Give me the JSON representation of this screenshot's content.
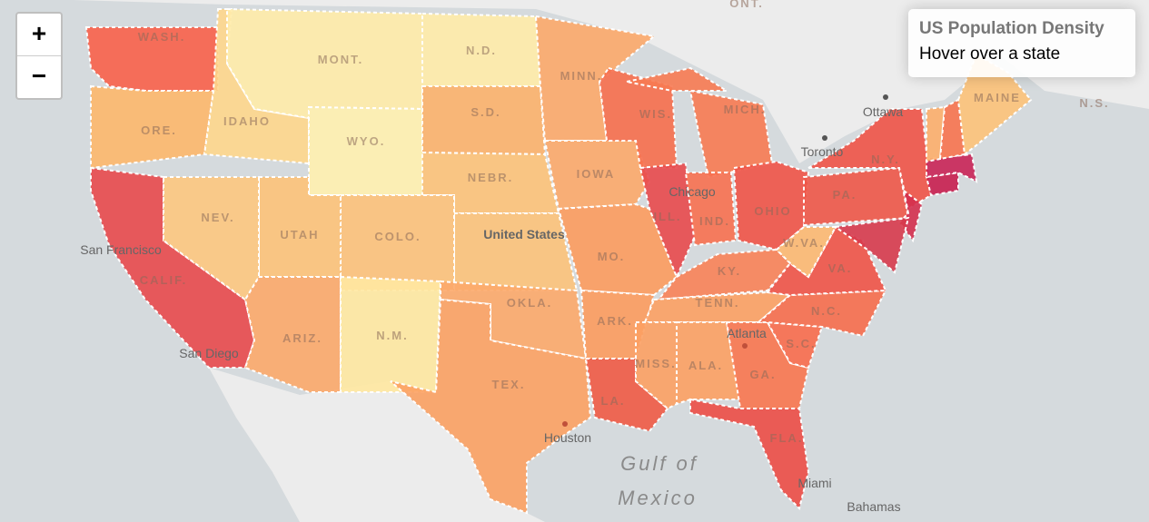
{
  "zoom": {
    "in": "+",
    "out": "−"
  },
  "info": {
    "title": "US Population Density",
    "text": "Hover over a state"
  },
  "map": {
    "labels": [
      "WASH.",
      "MONT.",
      "N.D.",
      "MINN.",
      "ORE.",
      "IDAHO",
      "WYO.",
      "S.D.",
      "WIS.",
      "MICH.",
      "NEBR.",
      "IOWA",
      "NEV.",
      "UTAH",
      "COLO.",
      "CALIF.",
      "ILL.",
      "IND.",
      "OHIO",
      "PA.",
      "N.Y.",
      "MAINE",
      "MO.",
      "KY.",
      "W.VA.",
      "VA.",
      "ARIZ.",
      "N.M.",
      "OKLA.",
      "ARK.",
      "TENN.",
      "N.C.",
      "S.C.",
      "GA.",
      "ALA.",
      "MISS.",
      "LA.",
      "TEX.",
      "FLA.",
      "N.S.",
      "ONT."
    ],
    "places": [
      "San Francisco",
      "San Diego",
      "Chicago",
      "Toronto",
      "Ottawa",
      "Houston",
      "Atlanta",
      "Miami",
      "Bahamas",
      "United States",
      "Gulf of",
      "Mexico"
    ]
  }
}
